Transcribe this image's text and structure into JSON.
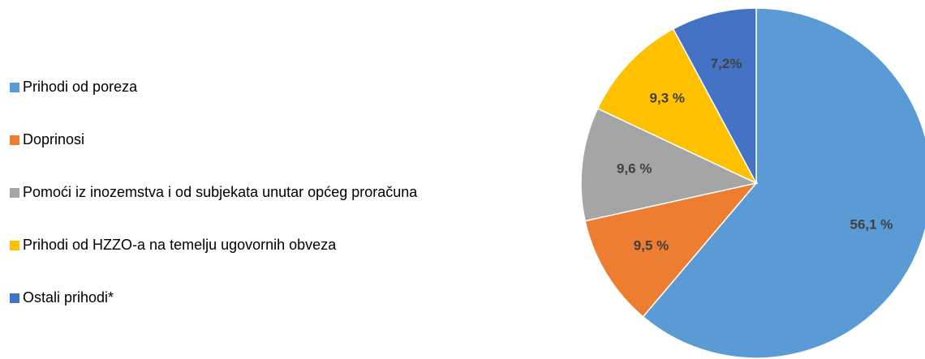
{
  "chart_data": {
    "type": "pie",
    "categories": [
      "Prihodi od poreza",
      "Doprinosi",
      "Pomoći iz inozemstva i od subjekata unutar općeg proračuna",
      "Prihodi od HZZO-a na temelju ugovornih obveza",
      "Ostali prihodi*"
    ],
    "values": [
      56.1,
      9.5,
      9.6,
      9.3,
      7.2
    ],
    "value_labels": [
      "56,1 %",
      "9,5 %",
      "9,6 %",
      "9,3 %",
      "7,2%"
    ],
    "colors": [
      "#5b9bd5",
      "#ed7d31",
      "#a5a5a5",
      "#ffc000",
      "#4472c4"
    ],
    "legend": "left"
  }
}
